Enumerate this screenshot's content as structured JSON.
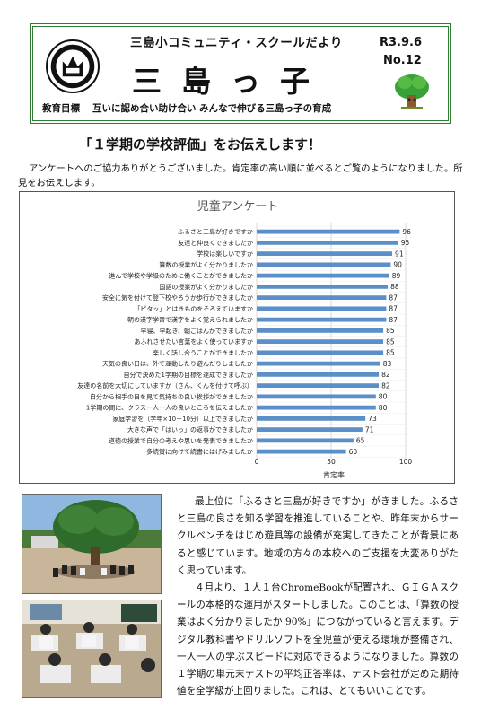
{
  "masthead": {
    "subtitle": "三島小コミュニティ・スクールだより",
    "title": "三島っ子",
    "date": "R3.9.6",
    "issue": "No.12",
    "goal_label": "教育目標",
    "goal_text": "互いに認め合い助け合い みんなで伸びる三島っ子の育成",
    "seal_icon": "school-crest-icon",
    "mascot_icon": "tree-mascot-icon"
  },
  "headline": "「１学期の学校評価」をお伝えします！",
  "intro": "アンケートへのご協力ありがとうございました。肯定率の高い順に並べるとご覧のようになりました。所見をお伝えします。",
  "chart_data": {
    "type": "bar",
    "orientation": "horizontal",
    "title": "児童アンケート",
    "xlabel": "肯定率",
    "xlim": [
      0,
      100
    ],
    "xticks": [
      "0",
      "50",
      "100"
    ],
    "grid": true,
    "bar_color": "#5b8fc9",
    "categories": [
      "ふるさと三島が好きですか",
      "友達と仲良くできましたか",
      "学校は楽しいですか",
      "算数の授業がよく分かりましたか",
      "進んで学校や学級のために働くことができましたか",
      "国語の授業がよく分かりましたか",
      "安全に気を付けて登下校やろうか歩行ができましたか",
      "「ピタッ」とはきものをそろえていますか",
      "朝の漢字学習で漢字をよく覚えられましたか",
      "早寝、早起き、朝ごはんができましたか",
      "あふれさせたい言葉をよく使っていますか",
      "楽しく話し合うことができましたか",
      "天気の良い日は、外で運動したり遊んだりしましたか",
      "自分で決めた1学期の目標を達成できましたか",
      "友達の名前を大切にしていますか（さん、くんを付けて呼ぶ）",
      "自分から相手の目を見て気持ちの良い挨拶ができましたか",
      "1学期の間に、クラス一人一人の良いところを伝えましたか",
      "家庭学習を（学年×10＋10分）以上できましたか",
      "大きな声で「はいっ」の返事ができましたか",
      "道徳の授業で自分の考えや思いを発表できましたか",
      "多読賞に向けて読書にはげみましたか"
    ],
    "values": [
      96,
      95,
      91,
      90,
      89,
      88,
      87,
      87,
      87,
      85,
      85,
      85,
      83,
      82,
      82,
      80,
      80,
      73,
      71,
      65,
      60
    ]
  },
  "photos": {
    "photo1_name": "schoolyard-tree-photo",
    "photo2_name": "classroom-chromebook-photo"
  },
  "body": {
    "p1": "最上位に「ふるさと三島が好きですか」がきました。ふるさと三島の良さを知る学習を推進していることや、昨年末からサークルベンチをはじめ遊具等の設備が充実してきたことが背景にあると感じています。地域の方々の本校へのご支援を大変ありがたく思っています。",
    "p2": "４月より、１人１台ChromeBookが配置され、ＧＩＧＡスクールの本格的な運用がスタートしました。このことは、「算数の授業はよく分かりましたか 90%」につながっていると言えます。デジタル教科書やドリルソフトを全児童が使える環境が整備され、一人一人の学ぶスピードに対応できるようになりました。算数の１学期の単元末テストの平均正答率は、テスト会社が定めた期待値を全学級が上回りました。これは、とてもいいことです。"
  }
}
